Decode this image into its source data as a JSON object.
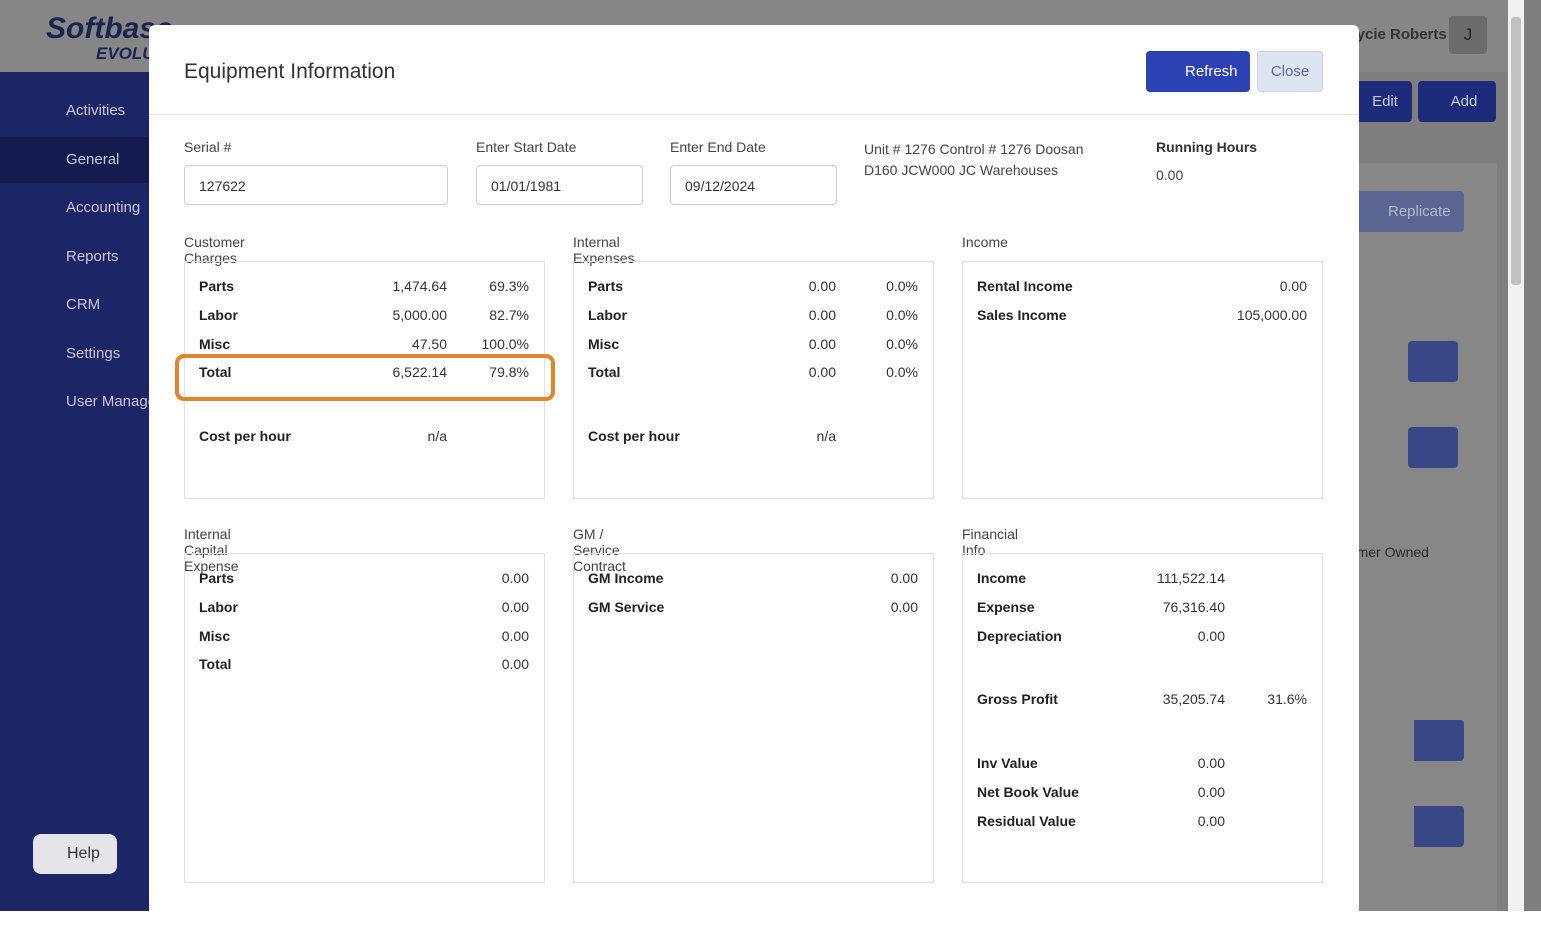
{
  "app": {
    "logo": "Softbase",
    "logo_sub": "EVOLUTION",
    "user": "Jaycie Roberts",
    "avatar": "J",
    "nav": [
      "Activities",
      "General",
      "Accounting",
      "Reports",
      "CRM",
      "Settings",
      "User Management"
    ],
    "help": "Help",
    "edit": "Edit",
    "add": "Add",
    "replicate": "Replicate",
    "ownership": "Customer Owned"
  },
  "modal": {
    "title": "Equipment Information",
    "refresh": "Refresh",
    "close": "Close",
    "fields": [
      {
        "label": "Serial #",
        "value": "127622"
      },
      {
        "label": "Enter Start Date",
        "value": "01/01/1981"
      },
      {
        "label": "Enter End Date",
        "value": "09/12/2024"
      }
    ],
    "unit_info": "Unit # 1276 Control # 1276 Doosan D160 JCW000 JC Warehouses",
    "running_hours": {
      "label": "Running Hours",
      "value": "0.00"
    },
    "panels": [
      {
        "title": "Customer Charges",
        "groups": [
          [
            [
              "Parts",
              "1,474.64",
              "69.3%"
            ],
            [
              "Labor",
              "5,000.00",
              "82.7%"
            ],
            [
              "Misc",
              "47.50",
              "100.0%"
            ],
            [
              "Total",
              "6,522.14",
              "79.8%"
            ]
          ],
          [
            [
              "Cost per hour",
              "n/a"
            ]
          ]
        ]
      },
      {
        "title": "Internal Expenses",
        "groups": [
          [
            [
              "Parts",
              "0.00",
              "0.0%"
            ],
            [
              "Labor",
              "0.00",
              "0.0%"
            ],
            [
              "Misc",
              "0.00",
              "0.0%"
            ],
            [
              "Total",
              "0.00",
              "0.0%"
            ]
          ],
          [
            [
              "Cost per hour",
              "n/a"
            ]
          ]
        ]
      },
      {
        "title": "Income",
        "groups": [
          [
            [
              "Rental Income",
              "0.00"
            ],
            [
              "Sales Income",
              "105,000.00"
            ]
          ]
        ]
      },
      {
        "title": "Internal Capital Expense",
        "groups": [
          [
            [
              "Parts",
              "0.00"
            ],
            [
              "Labor",
              "0.00"
            ],
            [
              "Misc",
              "0.00"
            ],
            [
              "Total",
              "0.00"
            ]
          ]
        ]
      },
      {
        "title": "GM / Service Contract",
        "groups": [
          [
            [
              "GM Income",
              "0.00"
            ],
            [
              "GM Service",
              "0.00"
            ]
          ]
        ]
      },
      {
        "title": "Financial Info",
        "groups": [
          [
            [
              "Income",
              "111,522.14"
            ],
            [
              "Expense",
              "76,316.40"
            ],
            [
              "Depreciation",
              "0.00"
            ]
          ],
          [
            [
              "Gross Profit",
              "35,205.74",
              "31.6%"
            ]
          ],
          [
            [
              "Inv Value",
              "0.00"
            ],
            [
              "Net Book Value",
              "0.00"
            ],
            [
              "Residual Value",
              "0.00"
            ]
          ]
        ]
      }
    ]
  }
}
